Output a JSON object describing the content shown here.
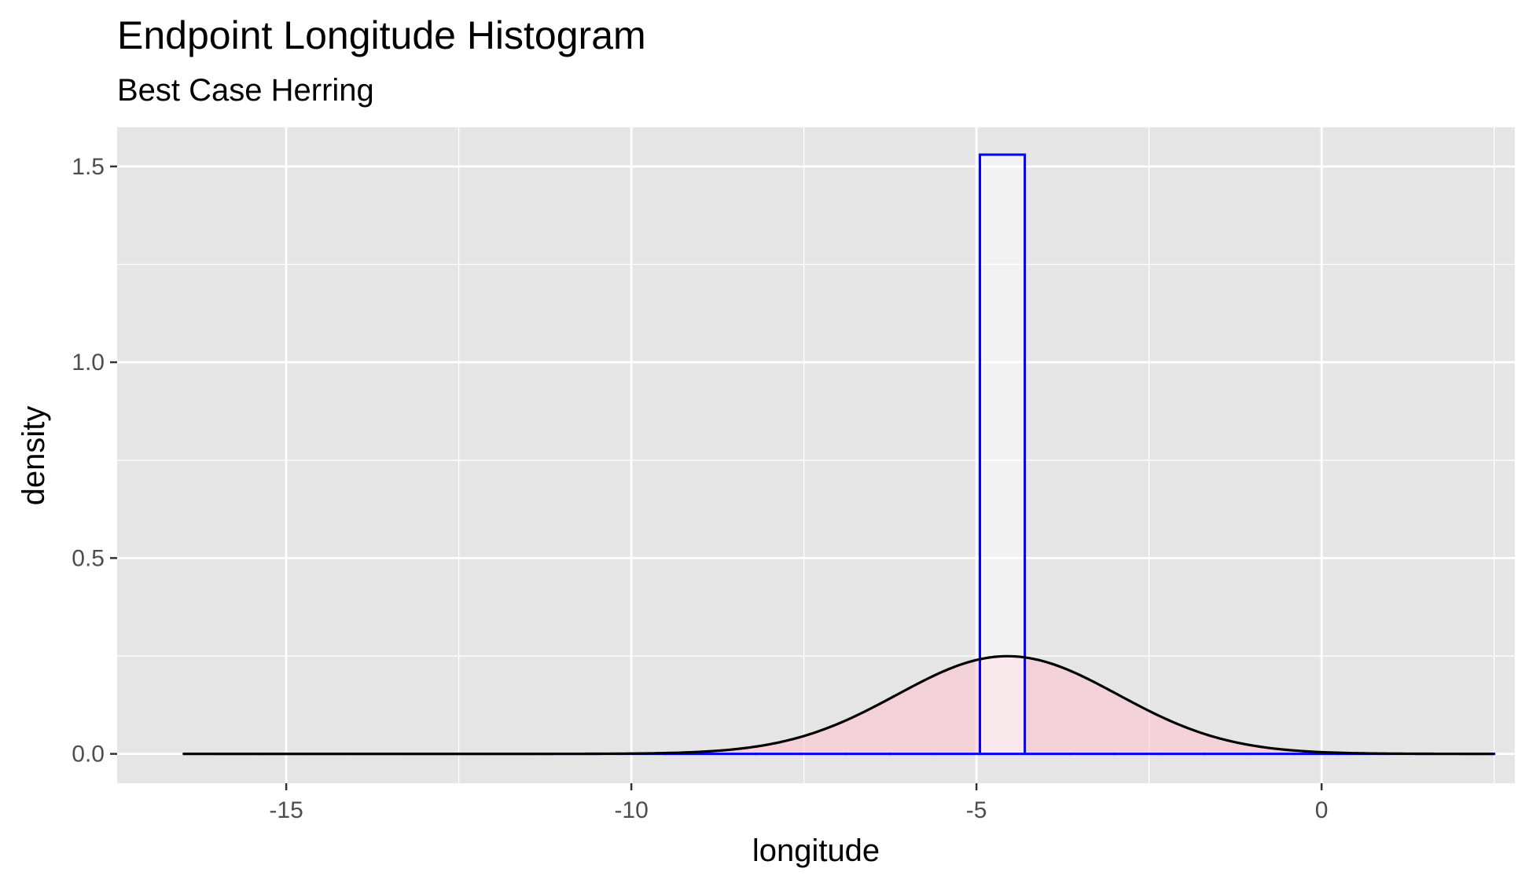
{
  "chart_data": {
    "type": "histogram",
    "title": "Endpoint Longitude Histogram",
    "subtitle": "Best Case Herring",
    "xlabel": "longitude",
    "ylabel": "density",
    "xlim": [
      -17.45,
      2.8
    ],
    "ylim": [
      -0.075,
      1.6
    ],
    "x_ticks": [
      -15,
      -10,
      -5,
      0
    ],
    "x_tick_labels": [
      "-15",
      "-10",
      "-5",
      "0"
    ],
    "y_ticks": [
      0.0,
      0.5,
      1.0,
      1.5
    ],
    "y_tick_labels": [
      "0.0",
      "0.5",
      "1.0",
      "1.5"
    ],
    "grid": true,
    "histogram": {
      "bins": [
        {
          "x0": -16.0,
          "x1": -15.35,
          "density": 0
        },
        {
          "x0": -15.35,
          "x1": -14.7,
          "density": 0
        },
        {
          "x0": -14.7,
          "x1": -14.05,
          "density": 0
        },
        {
          "x0": -14.05,
          "x1": -13.4,
          "density": 0
        },
        {
          "x0": -13.4,
          "x1": -12.75,
          "density": 0
        },
        {
          "x0": -12.75,
          "x1": -12.1,
          "density": 0
        },
        {
          "x0": -12.1,
          "x1": -11.45,
          "density": 0
        },
        {
          "x0": -11.45,
          "x1": -10.8,
          "density": 0
        },
        {
          "x0": -10.8,
          "x1": -10.15,
          "density": 0
        },
        {
          "x0": -10.15,
          "x1": -9.5,
          "density": 0
        },
        {
          "x0": -9.5,
          "x1": -8.85,
          "density": 0
        },
        {
          "x0": -8.85,
          "x1": -8.2,
          "density": 0
        },
        {
          "x0": -8.2,
          "x1": -7.55,
          "density": 0
        },
        {
          "x0": -7.55,
          "x1": -6.9,
          "density": 0
        },
        {
          "x0": -6.9,
          "x1": -6.25,
          "density": 0
        },
        {
          "x0": -6.25,
          "x1": -5.6,
          "density": 0
        },
        {
          "x0": -5.6,
          "x1": -4.95,
          "density": 0
        },
        {
          "x0": -4.95,
          "x1": -4.3,
          "density": 1.53
        },
        {
          "x0": -4.3,
          "x1": -3.65,
          "density": 0
        },
        {
          "x0": -3.65,
          "x1": -3.0,
          "density": 0
        },
        {
          "x0": -3.0,
          "x1": -2.35,
          "density": 0
        },
        {
          "x0": -2.35,
          "x1": -1.7,
          "density": 0
        },
        {
          "x0": -1.7,
          "x1": -1.05,
          "density": 0
        },
        {
          "x0": -1.05,
          "x1": -0.4,
          "density": 0
        },
        {
          "x0": -0.4,
          "x1": 0.25,
          "density": 0
        },
        {
          "x0": 0.25,
          "x1": 0.9,
          "density": 0
        },
        {
          "x0": 0.9,
          "x1": 1.55,
          "density": 0
        },
        {
          "x0": 1.55,
          "x1": 2.2,
          "density": 0
        },
        {
          "x0": 2.2,
          "x1": 2.5,
          "density": 0
        }
      ]
    },
    "density_curve": {
      "type": "normal",
      "mean": -4.55,
      "sd": 1.6,
      "range": [
        -16.5,
        2.5
      ]
    },
    "colors": {
      "panel_bg": "#e5e5e5",
      "grid_major": "#ffffff",
      "bar_outline": "#0000ff",
      "bar_fill": "#ffffff",
      "density_fill": "#ffc0cb",
      "density_line": "#000000"
    }
  }
}
